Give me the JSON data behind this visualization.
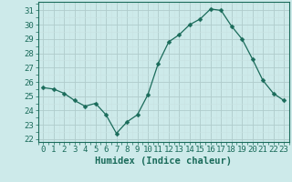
{
  "x": [
    0,
    1,
    2,
    3,
    4,
    5,
    6,
    7,
    8,
    9,
    10,
    11,
    12,
    13,
    14,
    15,
    16,
    17,
    18,
    19,
    20,
    21,
    22,
    23
  ],
  "y": [
    25.6,
    25.5,
    25.2,
    24.7,
    24.3,
    24.5,
    23.7,
    22.4,
    23.2,
    23.7,
    25.1,
    27.3,
    28.8,
    29.3,
    30.0,
    30.4,
    31.1,
    31.0,
    29.9,
    29.0,
    27.6,
    26.1,
    25.2,
    24.7
  ],
  "line_color": "#1a6b5a",
  "marker": "D",
  "marker_size": 2.5,
  "bg_color": "#cdeaea",
  "grid_color_major": "#b0cccc",
  "grid_color_minor": "#c8e2e2",
  "xlabel": "Humidex (Indice chaleur)",
  "xlabel_fontsize": 7.5,
  "ylabel_ticks": [
    22,
    23,
    24,
    25,
    26,
    27,
    28,
    29,
    30,
    31
  ],
  "xtick_labels": [
    "0",
    "1",
    "2",
    "3",
    "4",
    "5",
    "6",
    "7",
    "8",
    "9",
    "10",
    "11",
    "12",
    "13",
    "14",
    "15",
    "16",
    "17",
    "18",
    "19",
    "20",
    "21",
    "22",
    "23"
  ],
  "ylim": [
    21.8,
    31.6
  ],
  "xlim": [
    -0.5,
    23.5
  ],
  "tick_fontsize": 6.5
}
